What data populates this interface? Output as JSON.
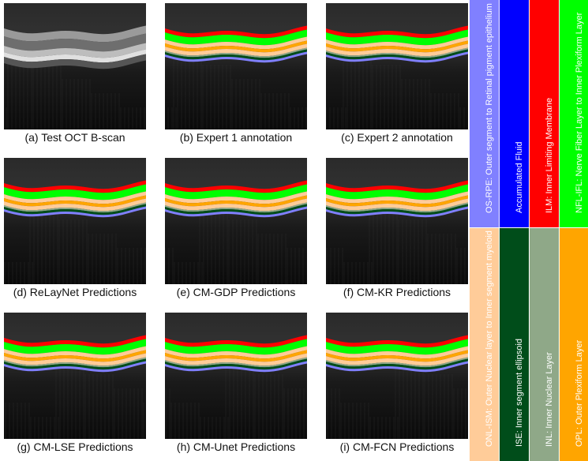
{
  "panels": [
    {
      "caption": "(a) Test OCT B-scan",
      "segmented": false
    },
    {
      "caption": "(b) Expert 1 annotation",
      "segmented": true
    },
    {
      "caption": "(c) Expert 2 annotation",
      "segmented": true
    },
    {
      "caption": "(d) ReLayNet Predictions",
      "segmented": true
    },
    {
      "caption": "(e) CM-GDP Predictions",
      "segmented": true
    },
    {
      "caption": "(f) CM-KR Predictions",
      "segmented": true
    },
    {
      "caption": "(g) CM-LSE Predictions",
      "segmented": true
    },
    {
      "caption": "(h) CM-Unet Predictions",
      "segmented": true
    },
    {
      "caption": "(i) CM-FCN Predictions",
      "segmented": true
    }
  ],
  "legend": {
    "top": [
      {
        "label": "OS-RPE: Outer segment to Retinal pigment epithelium",
        "color": "#8080ff",
        "text_color": "#ffffff"
      },
      {
        "label": "Accumulated Fluid",
        "color": "#0000ff",
        "text_color": "#ffffff"
      },
      {
        "label": "ILM: Inner Limiting Membrane",
        "color": "#ff0000",
        "text_color": "#ffffff"
      },
      {
        "label": "NFL-IFL: Nerve Fiber Layer to Inner Plexiform Layer",
        "color": "#00ff00",
        "text_color": "#ffffff"
      }
    ],
    "bottom": [
      {
        "label": "ONL-ISM: Outer Nuclear layer to Inner segment myeloid",
        "color": "#ffcc99",
        "text_color": "#ffffff"
      },
      {
        "label": "ISE: Inner segment ellipsoid",
        "color": "#004d1a",
        "text_color": "#ffffff"
      },
      {
        "label": "INL: Inner Nuclear Layer",
        "color": "#8fa888",
        "text_color": "#ffffff"
      },
      {
        "label": "OPL: Outer Plexiform Layer",
        "color": "#ffa500",
        "text_color": "#ffffff"
      }
    ]
  }
}
